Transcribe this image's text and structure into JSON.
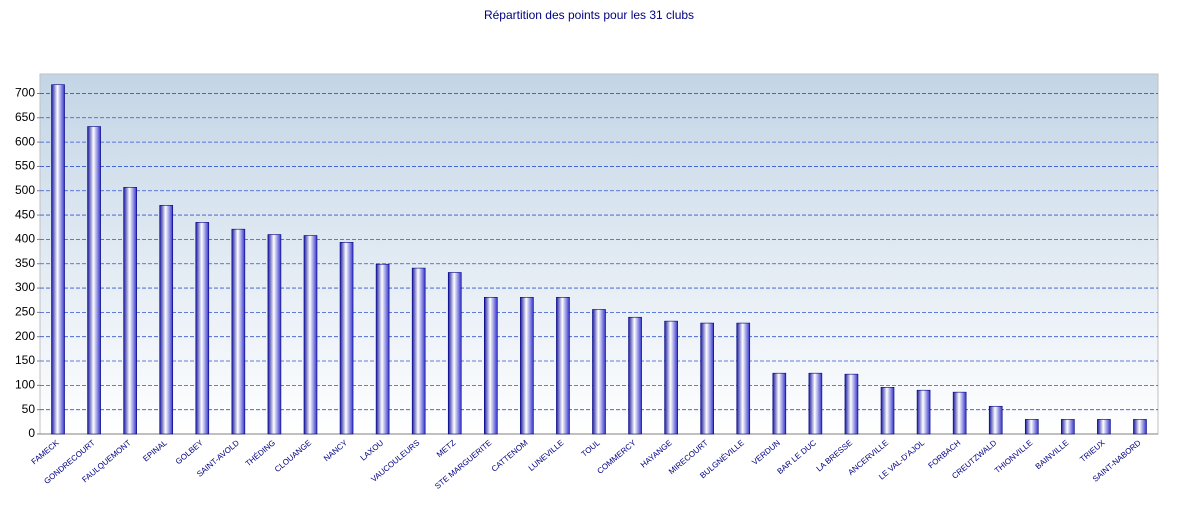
{
  "chart_data": {
    "type": "bar",
    "title": "Répartition des points pour les 31 clubs",
    "categories": [
      "FAMECK",
      "GONDRECOURT",
      "FAULQUEMONT",
      "EPINAL",
      "GOLBEY",
      "SAINT-AVOLD",
      "THÉDING",
      "CLOUANGE",
      "NANCY",
      "LAXOU",
      "VAUCOULEURS",
      "METZ",
      "STE MARGUERITE",
      "CATTENOM",
      "LUNEVILLE",
      "TOUL",
      "COMMERCY",
      "HAYANGE",
      "MIRECOURT",
      "BULGNÉVILLE",
      "VERDUN",
      "BAR LE DUC",
      "LA BRESSE",
      "ANCERVILLE",
      "LE VAL-D'AJOL",
      "FORBACH",
      "CREUTZWALD",
      "THIONVILLE",
      "BAINVILLE",
      "TRIEUX",
      "SAINT-NABORD"
    ],
    "values": [
      718,
      632,
      507,
      470,
      435,
      421,
      410,
      408,
      394,
      349,
      341,
      332,
      281,
      281,
      281,
      256,
      240,
      232,
      228,
      228,
      125,
      125,
      123,
      96,
      90,
      86,
      57,
      30,
      30,
      30,
      30
    ],
    "color": "#3333cc",
    "ylim": [
      0,
      740
    ],
    "yticks": [
      0,
      50,
      100,
      150,
      200,
      250,
      300,
      350,
      400,
      450,
      500,
      550,
      600,
      650,
      700
    ],
    "grid": true
  }
}
